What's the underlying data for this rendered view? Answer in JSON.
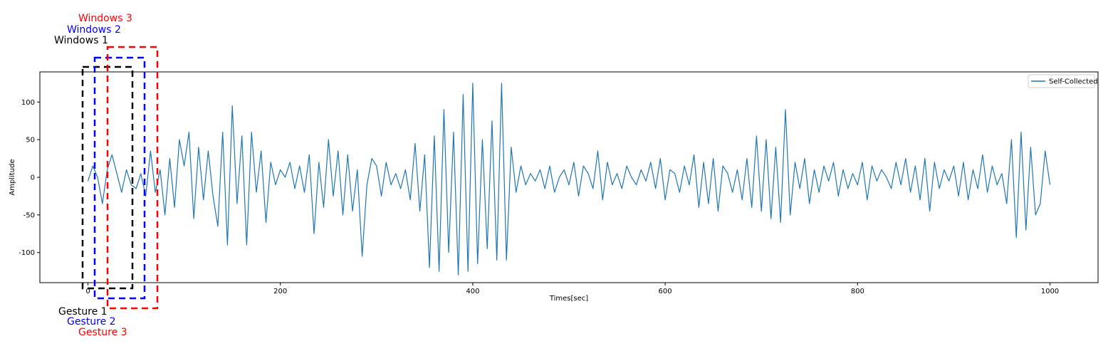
{
  "chart_data": {
    "type": "line",
    "title": "",
    "xlabel": "Times[sec]",
    "ylabel": "Amplitude",
    "xlim": [
      -50,
      1050
    ],
    "ylim": [
      -140,
      140
    ],
    "xticks": [
      0,
      200,
      400,
      600,
      800,
      1000
    ],
    "yticks": [
      -100,
      -50,
      0,
      50,
      100
    ],
    "legend": "top-right",
    "grid": false,
    "series": [
      {
        "name": "Self-Collected",
        "color": "#1f77b4",
        "x": [
          0,
          5,
          10,
          15,
          20,
          25,
          30,
          35,
          40,
          45,
          50,
          55,
          60,
          65,
          70,
          75,
          80,
          85,
          90,
          95,
          100,
          105,
          110,
          115,
          120,
          125,
          130,
          135,
          140,
          145,
          150,
          155,
          160,
          165,
          170,
          175,
          180,
          185,
          190,
          195,
          200,
          205,
          210,
          215,
          220,
          225,
          230,
          235,
          240,
          245,
          250,
          255,
          260,
          265,
          270,
          275,
          280,
          285,
          290,
          295,
          300,
          305,
          310,
          315,
          320,
          325,
          330,
          335,
          340,
          345,
          350,
          355,
          360,
          365,
          370,
          375,
          380,
          385,
          390,
          395,
          400,
          405,
          410,
          415,
          420,
          425,
          430,
          435,
          440,
          445,
          450,
          455,
          460,
          465,
          470,
          475,
          480,
          485,
          490,
          495,
          500,
          505,
          510,
          515,
          520,
          525,
          530,
          535,
          540,
          545,
          550,
          555,
          560,
          565,
          570,
          575,
          580,
          585,
          590,
          595,
          600,
          605,
          610,
          615,
          620,
          625,
          630,
          635,
          640,
          645,
          650,
          655,
          660,
          665,
          670,
          675,
          680,
          685,
          690,
          695,
          700,
          705,
          710,
          715,
          720,
          725,
          730,
          735,
          740,
          745,
          750,
          755,
          760,
          765,
          770,
          775,
          780,
          785,
          790,
          795,
          800,
          805,
          810,
          815,
          820,
          825,
          830,
          835,
          840,
          845,
          850,
          855,
          860,
          865,
          870,
          875,
          880,
          885,
          890,
          895,
          900,
          905,
          910,
          915,
          920,
          925,
          930,
          935,
          940,
          945,
          950,
          955,
          960,
          965,
          970,
          975,
          980,
          985,
          990,
          995,
          1000
        ],
        "values": [
          -5,
          15,
          0,
          -35,
          10,
          30,
          5,
          -20,
          10,
          -10,
          -15,
          5,
          -25,
          35,
          -20,
          10,
          -50,
          25,
          -40,
          50,
          15,
          60,
          -55,
          40,
          -30,
          35,
          -25,
          -65,
          60,
          -90,
          95,
          -35,
          55,
          -90,
          60,
          -20,
          35,
          -60,
          20,
          -10,
          10,
          0,
          20,
          -15,
          15,
          -20,
          30,
          -75,
          20,
          -40,
          50,
          -25,
          35,
          -50,
          30,
          -45,
          10,
          -105,
          -10,
          25,
          15,
          -25,
          20,
          -10,
          5,
          -15,
          10,
          -30,
          45,
          -45,
          30,
          -120,
          55,
          -125,
          90,
          -100,
          60,
          -130,
          110,
          -125,
          125,
          -115,
          50,
          -95,
          75,
          -110,
          125,
          -110,
          40,
          -20,
          15,
          -10,
          5,
          -5,
          10,
          -15,
          15,
          -20,
          0,
          10,
          -10,
          20,
          -25,
          15,
          5,
          -15,
          35,
          -30,
          20,
          -10,
          5,
          -15,
          15,
          0,
          -10,
          10,
          -5,
          20,
          -15,
          25,
          -30,
          10,
          5,
          -20,
          15,
          -10,
          30,
          -40,
          20,
          -35,
          25,
          -45,
          15,
          5,
          -20,
          10,
          -30,
          25,
          -40,
          55,
          -45,
          50,
          -55,
          40,
          -60,
          90,
          -50,
          20,
          -15,
          25,
          -35,
          10,
          -20,
          15,
          -5,
          20,
          -25,
          10,
          -15,
          5,
          -10,
          20,
          -30,
          15,
          -5,
          10,
          0,
          -15,
          20,
          -10,
          25,
          -20,
          15,
          -30,
          25,
          -45,
          20,
          -15,
          10,
          -5,
          15,
          -25,
          20,
          -30,
          10,
          -15,
          30,
          -20,
          15,
          -10,
          5,
          -35,
          50,
          -80,
          60,
          -70,
          40,
          -50,
          -35,
          35,
          -10
        ]
      }
    ]
  },
  "annotations": {
    "windows": [
      {
        "label": "Windows 1",
        "color": "#000000"
      },
      {
        "label": "Windows 2",
        "color": "#0000ff"
      },
      {
        "label": "Windows 3",
        "color": "#ff0000"
      }
    ],
    "gestures": [
      {
        "label": "Gesture 1",
        "color": "#000000"
      },
      {
        "label": "Gesture 2",
        "color": "#0000ff"
      },
      {
        "label": "Gesture 3",
        "color": "#ff0000"
      }
    ]
  }
}
